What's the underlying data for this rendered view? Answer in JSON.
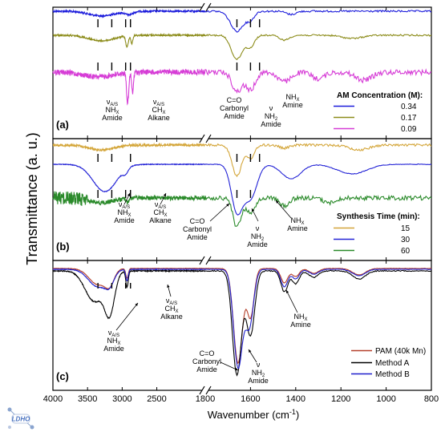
{
  "chart_data": {
    "type": "line",
    "x_axis": {
      "label": "Wavenumber (cm-1)",
      "label_main": "Wavenumber (cm",
      "label_sup": "-1",
      "label_end": ")",
      "reversed": true,
      "broken": true,
      "segments": [
        [
          4000,
          1800
        ],
        [
          1800,
          800
        ]
      ],
      "ticks": [
        4000,
        3500,
        3000,
        2500,
        1800,
        1600,
        1400,
        1200,
        1000,
        800
      ]
    },
    "y_axis": {
      "label": "Transmittance (a. u.)"
    },
    "panels": [
      {
        "label": "(a)",
        "legend_title": "AM Concentration (M):",
        "series": [
          {
            "name": "0.34",
            "color": "#1a1adb"
          },
          {
            "name": "0.17",
            "color": "#8c8c1a"
          },
          {
            "name": "0.09",
            "color": "#d63cd6"
          }
        ],
        "annotations": [
          {
            "lines": [
              "ν_A/S",
              "NH_X",
              "Amide"
            ]
          },
          {
            "lines": [
              "ν_A/S",
              "CH_X",
              "Alkane"
            ]
          },
          {
            "lines": [
              "C=O",
              "Carbonyl",
              "Amide"
            ]
          },
          {
            "lines": [
              "ν",
              "NH_2",
              "Amide"
            ]
          },
          {
            "lines": [
              "NH_X",
              "Amine"
            ]
          }
        ]
      },
      {
        "label": "(b)",
        "legend_title": "Synthesis Time (min):",
        "series": [
          {
            "name": "15",
            "color": "#d4a63a"
          },
          {
            "name": "30",
            "color": "#2323d6"
          },
          {
            "name": "60",
            "color": "#2a8a2a"
          }
        ],
        "annotations": [
          {
            "lines": [
              "ν_A/S",
              "NH_X",
              "Amide"
            ]
          },
          {
            "lines": [
              "ν_A/S",
              "CH_X",
              "Alkane"
            ]
          },
          {
            "lines": [
              "C=O",
              "Carbonyl",
              "Amide"
            ]
          },
          {
            "lines": [
              "ν",
              "NH_2",
              "Amide"
            ]
          },
          {
            "lines": [
              "NH_X",
              "Amine"
            ]
          }
        ]
      },
      {
        "label": "(c)",
        "legend_title": "",
        "series": [
          {
            "name": "PAM (40k Mn)",
            "color": "#b5402a"
          },
          {
            "name": "Method A",
            "color": "#000000"
          },
          {
            "name": "Method B",
            "color": "#2020cc"
          }
        ],
        "annotations": [
          {
            "lines": [
              "ν_A/S",
              "NH_X",
              "Amide"
            ]
          },
          {
            "lines": [
              "ν_A/S",
              "CH_X",
              "Alkane"
            ]
          },
          {
            "lines": [
              "C=O",
              "Carbonyl",
              "Amide"
            ]
          },
          {
            "lines": [
              "ν",
              "NH_2",
              "Amide"
            ]
          },
          {
            "lines": [
              "NH_X",
              "Amine"
            ]
          }
        ]
      }
    ]
  },
  "logo": {
    "text": "LDHO",
    "icon": "molecule-logo"
  }
}
